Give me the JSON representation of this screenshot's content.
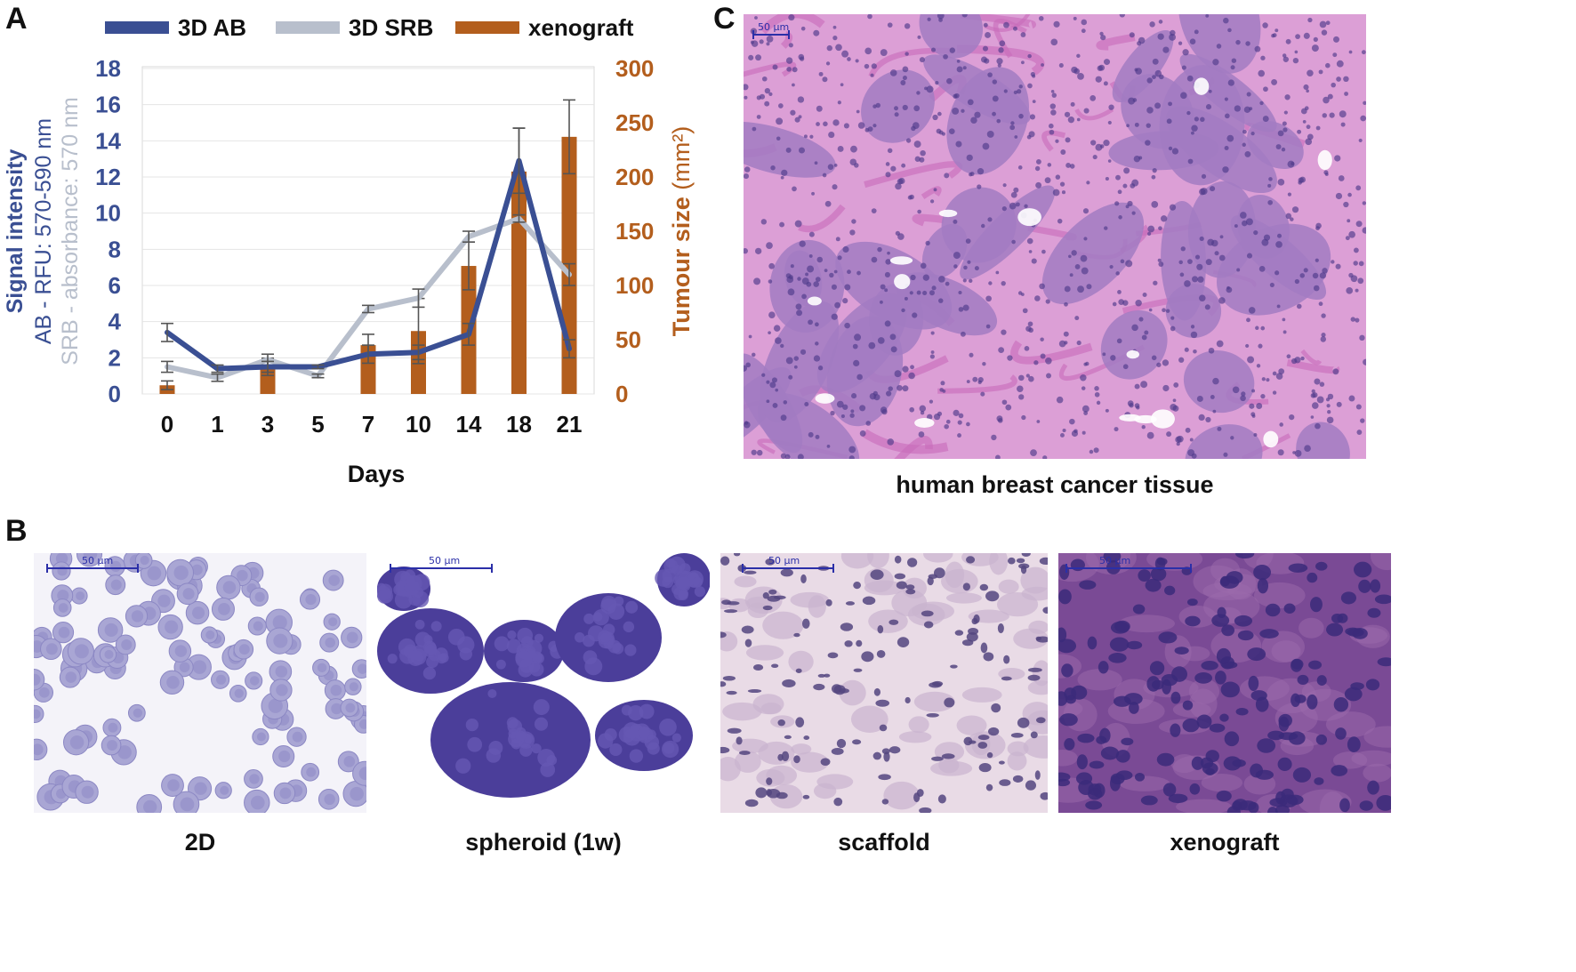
{
  "panels": {
    "a": "A",
    "b": "B",
    "c": "C"
  },
  "chart_data": {
    "type": "bar+line",
    "legend": [
      {
        "label": "3D AB",
        "color": "#3a4f93"
      },
      {
        "label": "3D SRB",
        "color": "#b8bfcc"
      },
      {
        "label": "xenograft",
        "color": "#b35e1d"
      }
    ],
    "categories": [
      "0",
      "1",
      "3",
      "5",
      "7",
      "10",
      "14",
      "18",
      "21"
    ],
    "xlabel": "Days",
    "left_axis": {
      "ticks": [
        "0",
        "2",
        "4",
        "6",
        "8",
        "10",
        "12",
        "14",
        "16",
        "18"
      ],
      "ylim": [
        0,
        18
      ],
      "label_line1": "Signal intensity",
      "label_line2": "AB - RFU: 570-590 nm",
      "label_line3": "SRB - absorbance: 570 nm"
    },
    "right_axis": {
      "ticks": [
        "0",
        "50",
        "100",
        "150",
        "200",
        "250",
        "300"
      ],
      "ylim": [
        0,
        300
      ],
      "label": "Tumour size",
      "unit": "(mm²)"
    },
    "series": [
      {
        "name": "3D AB",
        "kind": "line",
        "axis": "left",
        "values": [
          3.4,
          1.4,
          1.5,
          1.5,
          2.2,
          2.3,
          3.3,
          12.9,
          2.5
        ],
        "err": [
          0.5,
          0.2,
          0.3,
          0.1,
          0.5,
          0.4,
          0.6,
          1.8,
          0.5
        ]
      },
      {
        "name": "3D SRB",
        "kind": "line",
        "axis": "left",
        "values": [
          1.5,
          0.9,
          1.9,
          1.0,
          4.7,
          5.3,
          8.7,
          9.7,
          6.6
        ],
        "err": [
          0.3,
          0.2,
          0.3,
          0.1,
          0.2,
          0.5,
          0.3,
          0.2,
          0.6
        ]
      },
      {
        "name": "xenograft",
        "kind": "bar",
        "axis": "right",
        "values": [
          8,
          0,
          25,
          0,
          45,
          58,
          118,
          205,
          237
        ],
        "err": [
          4,
          0,
          8,
          0,
          10,
          30,
          22,
          40,
          34
        ]
      }
    ]
  },
  "panel_c": {
    "caption": "human breast cancer tissue",
    "scale_label": "50 µm"
  },
  "panel_b": {
    "images": [
      {
        "caption": "2D",
        "scale_label": "50 µm"
      },
      {
        "caption": "spheroid (1w)",
        "scale_label": "50 µm"
      },
      {
        "caption": "scaffold",
        "scale_label": "50 µm"
      },
      {
        "caption": "xenograft",
        "scale_label": "50 µm"
      }
    ]
  }
}
